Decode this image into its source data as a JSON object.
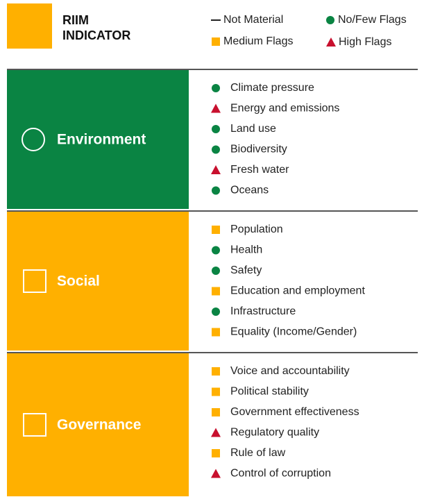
{
  "header": {
    "title_lines": [
      "RIIM",
      "INDICATOR"
    ]
  },
  "legend": [
    {
      "key": "none",
      "label": "Not Material"
    },
    {
      "key": "low",
      "label": "No/Few Flags"
    },
    {
      "key": "medium",
      "label": "Medium Flags"
    },
    {
      "key": "high",
      "label": "High Flags"
    }
  ],
  "sections": [
    {
      "label": "Environment",
      "icon": "circle",
      "color": "#0a8443",
      "items": [
        {
          "label": "Climate pressure",
          "flag": "low"
        },
        {
          "label": "Energy and emissions",
          "flag": "high"
        },
        {
          "label": "Land use",
          "flag": "low"
        },
        {
          "label": "Biodiversity",
          "flag": "low"
        },
        {
          "label": "Fresh water",
          "flag": "high"
        },
        {
          "label": "Oceans",
          "flag": "low"
        }
      ]
    },
    {
      "label": "Social",
      "icon": "square",
      "color": "#ffb000",
      "items": [
        {
          "label": "Population",
          "flag": "medium"
        },
        {
          "label": "Health",
          "flag": "low"
        },
        {
          "label": "Safety",
          "flag": "low"
        },
        {
          "label": "Education and employment",
          "flag": "medium"
        },
        {
          "label": "Infrastructure",
          "flag": "low"
        },
        {
          "label": "Equality (Income/Gender)",
          "flag": "medium"
        }
      ]
    },
    {
      "label": "Governance",
      "icon": "square",
      "color": "#ffb000",
      "items": [
        {
          "label": "Voice and accountability",
          "flag": "medium"
        },
        {
          "label": "Political stability",
          "flag": "medium"
        },
        {
          "label": "Government effectiveness",
          "flag": "medium"
        },
        {
          "label": "Regulatory quality",
          "flag": "high"
        },
        {
          "label": "Rule of law",
          "flag": "medium"
        },
        {
          "label": "Control of corruption",
          "flag": "high"
        }
      ]
    }
  ]
}
